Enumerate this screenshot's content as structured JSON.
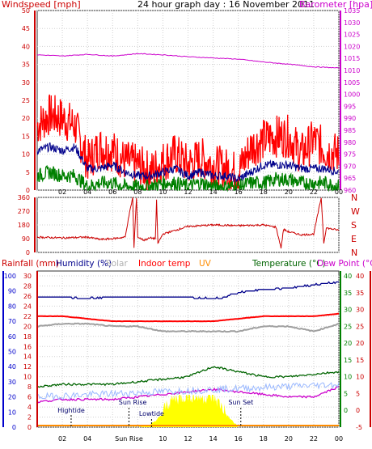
{
  "chart_data": [
    {
      "type": "line",
      "title": "24 hour graph day : 16 November 2011",
      "left_label": "Windspeed [mph]",
      "right_label": "Barometer [hpa]",
      "x_ticks": [
        "02",
        "04",
        "06",
        "08",
        "10",
        "12",
        "14",
        "16",
        "18",
        "20",
        "22",
        "00"
      ],
      "x_range_hours": [
        0,
        24
      ],
      "ylim_left": [
        0,
        50
      ],
      "yticks_left": [
        0,
        5,
        10,
        15,
        20,
        25,
        30,
        35,
        40,
        45,
        50
      ],
      "ylim_right": [
        960,
        1035
      ],
      "yticks_right": [
        960,
        965,
        970,
        975,
        980,
        985,
        990,
        995,
        1000,
        1005,
        1010,
        1015,
        1020,
        1025,
        1030,
        1035
      ],
      "grid": true,
      "colors": {
        "gust": "#ff0000",
        "average": "#00008b",
        "minimum": "#008000",
        "barometer": "#cc00cc"
      },
      "series": [
        {
          "key": "gust",
          "axis": "left",
          "x": [
            0,
            1,
            2,
            3,
            4,
            5,
            6,
            7,
            8,
            9,
            10,
            11,
            12,
            13,
            14,
            15,
            16,
            17,
            18,
            19,
            20,
            21,
            22,
            23,
            24
          ],
          "values": [
            18,
            21,
            20,
            18,
            8,
            12,
            11,
            8,
            7,
            5,
            8,
            10,
            7,
            9,
            7,
            6,
            5,
            12,
            14,
            15,
            15,
            10,
            14,
            11,
            10
          ]
        },
        {
          "key": "average",
          "axis": "left",
          "x": [
            0,
            1,
            2,
            3,
            4,
            5,
            6,
            7,
            8,
            9,
            10,
            11,
            12,
            13,
            14,
            15,
            16,
            17,
            18,
            19,
            20,
            21,
            22,
            23,
            24
          ],
          "values": [
            11,
            12,
            11,
            12,
            6,
            6,
            7,
            5,
            4,
            4,
            5,
            6,
            4,
            5,
            4,
            4,
            3,
            5,
            7,
            7,
            7,
            6,
            6,
            6,
            5
          ]
        },
        {
          "key": "minimum",
          "axis": "left",
          "x": [
            0,
            1,
            2,
            3,
            4,
            5,
            6,
            7,
            8,
            9,
            10,
            11,
            12,
            13,
            14,
            15,
            16,
            17,
            18,
            19,
            20,
            21,
            22,
            23,
            24
          ],
          "values": [
            4,
            5,
            4,
            4,
            1,
            2,
            2,
            1,
            1,
            1,
            2,
            2,
            1,
            2,
            1,
            1,
            1,
            2,
            2,
            3,
            3,
            2,
            2,
            2,
            1
          ]
        },
        {
          "key": "barometer",
          "axis": "right",
          "x": [
            0,
            2,
            4,
            6,
            8,
            10,
            12,
            14,
            16,
            18,
            20,
            22,
            24
          ],
          "values": [
            1016.5,
            1016,
            1016.7,
            1016,
            1017,
            1016.5,
            1015.7,
            1015.2,
            1014.7,
            1013.5,
            1012.6,
            1011.5,
            1011
          ]
        }
      ]
    },
    {
      "type": "line",
      "left_ticks": [
        "0",
        "90",
        "180",
        "270",
        "360"
      ],
      "right_labels": [
        "N",
        "W",
        "S",
        "E",
        "N"
      ],
      "ylim": [
        0,
        360
      ],
      "color": "#cc0000",
      "series": [
        {
          "key": "wind_direction",
          "x": [
            0,
            2,
            4,
            5,
            6,
            7,
            7.3,
            7.6,
            7.7,
            7.9,
            8,
            8.5,
            9,
            9.4,
            9.5,
            9.6,
            10,
            12,
            14,
            16,
            18,
            19,
            19.4,
            19.6,
            20,
            21,
            22,
            22.6,
            22.8,
            23,
            24
          ],
          "values": [
            100,
            95,
            100,
            85,
            90,
            100,
            240,
            360,
            30,
            360,
            100,
            80,
            95,
            90,
            340,
            60,
            120,
            170,
            180,
            175,
            180,
            165,
            30,
            150,
            135,
            115,
            120,
            360,
            60,
            160,
            145
          ]
        }
      ]
    },
    {
      "type": "line",
      "labels_left": [
        "Rainfall (mm)",
        "Humidity (%)"
      ],
      "label_solar": "Solar",
      "label_indoor": "Indoor temp",
      "label_uv": "UV",
      "labels_right": [
        "Temperature (°C)",
        "Dew Point (°C)"
      ],
      "yticks_humidity": [
        0,
        10,
        20,
        30,
        40,
        50,
        60,
        70,
        80,
        90,
        100
      ],
      "yticks_rain": [
        0,
        2,
        4,
        6,
        8,
        10,
        12,
        14,
        16,
        18,
        20,
        22,
        24,
        26,
        28,
        30
      ],
      "yticks_temperature": [
        0,
        5,
        10,
        15,
        20,
        25,
        30,
        35,
        40
      ],
      "yticks_dewpoint": [
        -5,
        0,
        5,
        10,
        15,
        20,
        25,
        30,
        35,
        40
      ],
      "annotations": [
        "Hightide",
        "Sun Rise",
        "Lowtide",
        "Sun Set"
      ],
      "x_ticks": [
        "02",
        "04",
        "Sun Rise",
        "10",
        "12",
        "14",
        "16",
        "18",
        "20",
        "22",
        "00"
      ],
      "colors": {
        "humidity": "#00008b",
        "indoor": "#ff0000",
        "solar": "#a0a0a0",
        "temperature": "#006400",
        "dewpoint": "#cc00cc",
        "uv": "#ffff00",
        "rain": "#ff8c00"
      },
      "series": [
        {
          "key": "humidity",
          "x": [
            0,
            2,
            4,
            6,
            8,
            10,
            12,
            14,
            15,
            16,
            18,
            20,
            22,
            23,
            24
          ],
          "values": [
            86,
            86,
            85,
            86,
            86,
            86,
            86,
            85,
            86,
            89,
            91,
            92,
            94,
            95,
            96
          ]
        },
        {
          "key": "indoor_temp",
          "x": [
            0,
            2,
            4,
            6,
            8,
            10,
            12,
            14,
            16,
            18,
            20,
            22,
            24
          ],
          "values": [
            22,
            22,
            21.5,
            21,
            21,
            21,
            21,
            21,
            21.5,
            22,
            22,
            22,
            22.5
          ]
        },
        {
          "key": "solar",
          "x": [
            0,
            2,
            4,
            6,
            8,
            10,
            12,
            14,
            16,
            18,
            20,
            22,
            24
          ],
          "values": [
            20,
            20.5,
            20.5,
            20,
            20,
            19,
            19,
            19,
            19,
            20,
            20,
            19,
            20.5
          ]
        },
        {
          "key": "temperature",
          "x": [
            0,
            2,
            4,
            6,
            8,
            10,
            12,
            14,
            16,
            18,
            20,
            22,
            24
          ],
          "values": [
            8,
            8.5,
            8.5,
            8.5,
            9,
            9.5,
            10,
            12,
            11,
            10,
            10,
            10.5,
            11
          ]
        },
        {
          "key": "dewpoint",
          "x": [
            0,
            2,
            4,
            6,
            8,
            10,
            12,
            14,
            16,
            18,
            20,
            22,
            24
          ],
          "values": [
            5,
            5.5,
            5.5,
            5.5,
            6,
            6.5,
            7,
            7.5,
            7,
            6.5,
            6,
            6,
            8
          ]
        },
        {
          "key": "uv",
          "x": [
            7.3,
            8,
            9,
            10,
            10.5,
            11,
            12,
            13,
            14,
            15,
            15.5,
            16
          ],
          "values": [
            0,
            0,
            0.3,
            2,
            3.5,
            4,
            4.5,
            4.2,
            4.3,
            2,
            1,
            0
          ]
        }
      ]
    }
  ]
}
